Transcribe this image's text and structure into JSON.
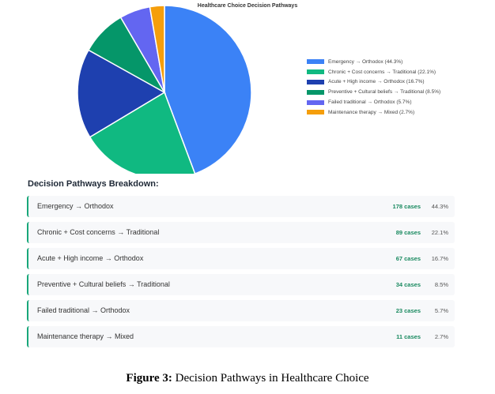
{
  "chart_data": {
    "type": "pie",
    "title": "Healthcare Choice Decision Pathways",
    "slices": [
      {
        "label": "Emergency → Orthodox",
        "legend": "Emergency → Orthodox (44.3%)",
        "value": 44.3,
        "cases": "178 cases",
        "percent": "44.3%",
        "color": "#3b82f6"
      },
      {
        "label": "Chronic + Cost concerns → Traditional",
        "legend": "Chronic + Cost concerns → Traditional (22.1%)",
        "value": 22.1,
        "cases": "89 cases",
        "percent": "22.1%",
        "color": "#10b981"
      },
      {
        "label": "Acute + High income → Orthodox",
        "legend": "Acute + High income → Orthodox (16.7%)",
        "value": 16.7,
        "cases": "67 cases",
        "percent": "16.7%",
        "color": "#1e40af"
      },
      {
        "label": "Preventive + Cultural beliefs → Traditional",
        "legend": "Preventive + Cultural beliefs → Traditional (8.5%)",
        "value": 8.5,
        "cases": "34 cases",
        "percent": "8.5%",
        "color": "#059669"
      },
      {
        "label": "Failed traditional → Orthodox",
        "legend": "Failed traditional → Orthodox (5.7%)",
        "value": 5.7,
        "cases": "23 cases",
        "percent": "5.7%",
        "color": "#6366f1"
      },
      {
        "label": "Maintenance therapy → Mixed",
        "legend": "Maintenance therapy → Mixed (2.7%)",
        "value": 2.7,
        "cases": "11 cases",
        "percent": "2.7%",
        "color": "#f59e0b"
      }
    ],
    "legend_position": "right"
  },
  "breakdown": {
    "title": "Decision Pathways Breakdown:",
    "accent_color": "#19a77a"
  },
  "caption": {
    "label": "Figure 3:",
    "text": " Decision Pathways in Healthcare Choice"
  }
}
